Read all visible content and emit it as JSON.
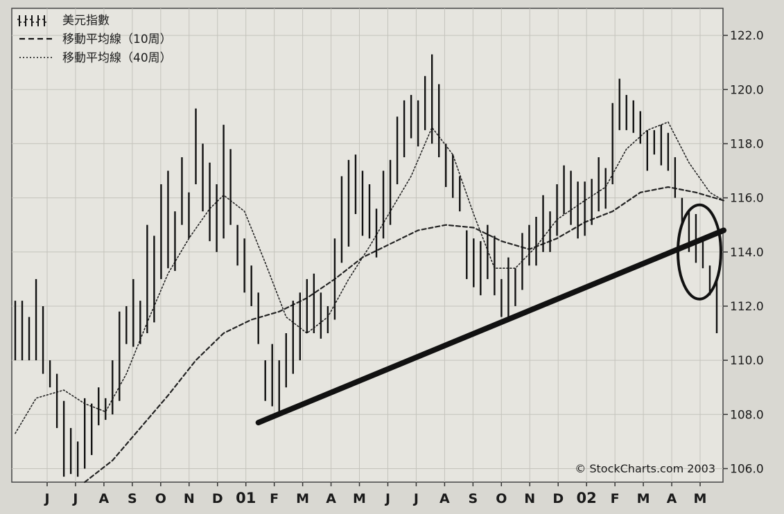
{
  "chart_data": {
    "type": "ohlc_bar",
    "title": "",
    "legend": [
      {
        "symbol": "bars",
        "label": "美元指數"
      },
      {
        "symbol": "dashed",
        "label": "移動平均線（10周）"
      },
      {
        "symbol": "dotted",
        "label": "移動平均線（40周）"
      }
    ],
    "legend_position": "top-left",
    "credit": "© StockCharts.com 2003",
    "y_axis": {
      "position": "right",
      "ylim": [
        105.5,
        123.0
      ],
      "ticks": [
        106.0,
        108.0,
        110.0,
        112.0,
        114.0,
        116.0,
        118.0,
        120.0,
        122.0
      ],
      "tick_labels": [
        "106.0",
        "108.0",
        "110.0",
        "112.0",
        "114.0",
        "116.0",
        "118.0",
        "120.0",
        "122.0"
      ]
    },
    "x_axis": {
      "labels": [
        "J",
        "J",
        "A",
        "S",
        "O",
        "N",
        "D",
        "01",
        "F",
        "M",
        "A",
        "M",
        "J",
        "J",
        "A",
        "S",
        "O",
        "N",
        "D",
        "02",
        "F",
        "M",
        "A",
        "M"
      ],
      "year_labels": [
        "01",
        "02"
      ],
      "grid": true
    },
    "weekly_bars": [
      {
        "high": 112.2,
        "low": 110.0
      },
      {
        "high": 112.2,
        "low": 110.0
      },
      {
        "high": 111.6,
        "low": 110.0
      },
      {
        "high": 113.0,
        "low": 110.0
      },
      {
        "high": 112.0,
        "low": 109.5
      },
      {
        "high": 110.0,
        "low": 109.0
      },
      {
        "high": 109.5,
        "low": 107.5
      },
      {
        "high": 108.5,
        "low": 105.7
      },
      {
        "high": 107.5,
        "low": 105.8
      },
      {
        "high": 107.0,
        "low": 105.7
      },
      {
        "high": 108.6,
        "low": 106.0
      },
      {
        "high": 108.4,
        "low": 106.5
      },
      {
        "high": 109.0,
        "low": 107.6
      },
      {
        "high": 108.6,
        "low": 107.8
      },
      {
        "high": 110.0,
        "low": 108.0
      },
      {
        "high": 111.8,
        "low": 108.5
      },
      {
        "high": 112.0,
        "low": 110.6
      },
      {
        "high": 113.0,
        "low": 110.5
      },
      {
        "high": 112.2,
        "low": 110.6
      },
      {
        "high": 115.0,
        "low": 111.0
      },
      {
        "high": 114.6,
        "low": 111.4
      },
      {
        "high": 116.5,
        "low": 113.0
      },
      {
        "high": 117.0,
        "low": 113.4
      },
      {
        "high": 115.5,
        "low": 113.3
      },
      {
        "high": 117.5,
        "low": 115.0
      },
      {
        "high": 116.2,
        "low": 114.5
      },
      {
        "high": 119.3,
        "low": 116.5
      },
      {
        "high": 118.0,
        "low": 115.5
      },
      {
        "high": 117.3,
        "low": 114.4
      },
      {
        "high": 116.5,
        "low": 114.0
      },
      {
        "high": 118.7,
        "low": 114.5
      },
      {
        "high": 117.8,
        "low": 115.0
      },
      {
        "high": 115.0,
        "low": 113.5
      },
      {
        "high": 114.5,
        "low": 112.5
      },
      {
        "high": 113.5,
        "low": 112.0
      },
      {
        "high": 112.5,
        "low": 110.6
      },
      {
        "high": 110.0,
        "low": 108.5
      },
      {
        "high": 110.6,
        "low": 108.3
      },
      {
        "high": 110.0,
        "low": 108.0
      },
      {
        "high": 111.0,
        "low": 109.0
      },
      {
        "high": 112.2,
        "low": 109.5
      },
      {
        "high": 112.5,
        "low": 110.0
      },
      {
        "high": 113.0,
        "low": 111.0
      },
      {
        "high": 113.2,
        "low": 111.0
      },
      {
        "high": 112.5,
        "low": 110.8
      },
      {
        "high": 112.0,
        "low": 111.0
      },
      {
        "high": 114.5,
        "low": 111.5
      },
      {
        "high": 116.8,
        "low": 113.6
      },
      {
        "high": 117.4,
        "low": 114.2
      },
      {
        "high": 117.6,
        "low": 115.4
      },
      {
        "high": 117.0,
        "low": 114.6
      },
      {
        "high": 116.5,
        "low": 114.5
      },
      {
        "high": 115.6,
        "low": 113.8
      },
      {
        "high": 117.0,
        "low": 114.5
      },
      {
        "high": 117.4,
        "low": 115.0
      },
      {
        "high": 119.0,
        "low": 116.5
      },
      {
        "high": 119.6,
        "low": 117.5
      },
      {
        "high": 119.8,
        "low": 118.2
      },
      {
        "high": 119.6,
        "low": 117.9
      },
      {
        "high": 120.5,
        "low": 118.5
      },
      {
        "high": 121.3,
        "low": 118.0
      },
      {
        "high": 120.2,
        "low": 117.5
      },
      {
        "high": 118.0,
        "low": 116.4
      },
      {
        "high": 117.6,
        "low": 116.0
      },
      {
        "high": 116.8,
        "low": 115.5
      },
      {
        "high": 114.8,
        "low": 113.0
      },
      {
        "high": 114.5,
        "low": 112.7
      },
      {
        "high": 114.4,
        "low": 112.4
      },
      {
        "high": 115.0,
        "low": 113.0
      },
      {
        "high": 114.6,
        "low": 112.4
      },
      {
        "high": 113.0,
        "low": 111.6
      },
      {
        "high": 113.8,
        "low": 111.6
      },
      {
        "high": 113.4,
        "low": 112.0
      },
      {
        "high": 114.7,
        "low": 112.6
      },
      {
        "high": 115.0,
        "low": 113.5
      },
      {
        "high": 115.3,
        "low": 113.5
      },
      {
        "high": 116.1,
        "low": 114.0
      },
      {
        "high": 115.5,
        "low": 114.0
      },
      {
        "high": 116.5,
        "low": 114.6
      },
      {
        "high": 117.2,
        "low": 115.4
      },
      {
        "high": 117.0,
        "low": 115.0
      },
      {
        "high": 116.6,
        "low": 114.5
      },
      {
        "high": 116.6,
        "low": 114.6
      },
      {
        "high": 116.7,
        "low": 115.0
      },
      {
        "high": 117.5,
        "low": 115.5
      },
      {
        "high": 117.1,
        "low": 115.6
      },
      {
        "high": 119.5,
        "low": 116.5
      },
      {
        "high": 120.4,
        "low": 118.5
      },
      {
        "high": 119.8,
        "low": 118.5
      },
      {
        "high": 119.6,
        "low": 118.4
      },
      {
        "high": 119.2,
        "low": 118.0
      },
      {
        "high": 118.5,
        "low": 117.0
      },
      {
        "high": 118.5,
        "low": 117.6
      },
      {
        "high": 118.7,
        "low": 117.2
      },
      {
        "high": 118.4,
        "low": 117.0
      },
      {
        "high": 117.5,
        "low": 116.0
      },
      {
        "high": 116.0,
        "low": 115.0
      },
      {
        "high": 115.5,
        "low": 114.0
      },
      {
        "high": 115.4,
        "low": 113.6
      },
      {
        "high": 114.5,
        "low": 113.4
      },
      {
        "high": 113.5,
        "low": 112.4
      },
      {
        "high": 113.0,
        "low": 111.0
      }
    ],
    "moving_average_10w": [
      [
        0,
        null
      ],
      [
        7,
        null
      ],
      [
        10,
        104.8
      ],
      [
        14,
        106.3
      ],
      [
        18,
        107.5
      ],
      [
        22,
        108.7
      ],
      [
        26,
        110.0
      ],
      [
        30,
        111.0
      ],
      [
        34,
        111.5
      ],
      [
        38,
        111.8
      ],
      [
        42,
        112.3
      ],
      [
        46,
        113.0
      ],
      [
        50,
        113.8
      ],
      [
        54,
        114.3
      ],
      [
        58,
        114.8
      ],
      [
        62,
        115.0
      ],
      [
        66,
        114.9
      ],
      [
        70,
        114.4
      ],
      [
        74,
        114.1
      ],
      [
        78,
        114.5
      ],
      [
        82,
        115.1
      ],
      [
        86,
        115.5
      ],
      [
        90,
        116.2
      ],
      [
        94,
        116.4
      ],
      [
        98,
        116.2
      ],
      [
        102,
        115.9
      ]
    ],
    "moving_average_40w": [
      [
        0,
        107.3
      ],
      [
        3,
        108.6
      ],
      [
        7,
        108.9
      ],
      [
        10,
        108.4
      ],
      [
        13,
        108.1
      ],
      [
        16,
        109.5
      ],
      [
        19,
        111.4
      ],
      [
        22,
        113.2
      ],
      [
        25,
        114.5
      ],
      [
        28,
        115.6
      ],
      [
        30,
        116.1
      ],
      [
        33,
        115.5
      ],
      [
        36,
        113.6
      ],
      [
        39,
        111.6
      ],
      [
        42,
        111.0
      ],
      [
        45,
        111.6
      ],
      [
        48,
        113.0
      ],
      [
        51,
        114.2
      ],
      [
        54,
        115.5
      ],
      [
        57,
        116.8
      ],
      [
        60,
        118.6
      ],
      [
        63,
        117.6
      ],
      [
        66,
        115.4
      ],
      [
        69,
        113.4
      ],
      [
        72,
        113.4
      ],
      [
        75,
        114.2
      ],
      [
        78,
        115.2
      ],
      [
        82,
        115.9
      ],
      [
        85,
        116.4
      ],
      [
        88,
        117.8
      ],
      [
        91,
        118.5
      ],
      [
        94,
        118.8
      ],
      [
        97,
        117.3
      ],
      [
        100,
        116.2
      ],
      [
        102,
        115.9
      ]
    ],
    "annotations": [
      {
        "type": "trendline",
        "from": {
          "week": 35,
          "value": 107.7
        },
        "to": {
          "week": 102,
          "value": 114.8
        }
      },
      {
        "type": "ellipse",
        "center": {
          "week": 98.5,
          "value": 114.0
        },
        "label": ""
      }
    ]
  }
}
